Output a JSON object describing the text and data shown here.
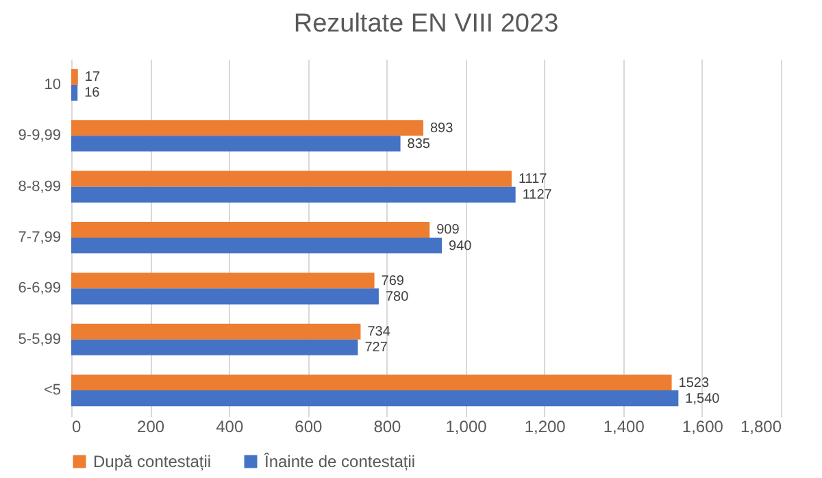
{
  "chart_data": {
    "type": "bar",
    "orientation": "horizontal",
    "title": "Rezultate EN VIII 2023",
    "categories": [
      "10",
      "9-9,99",
      "8-8,99",
      "7-7,99",
      "6-6,99",
      "5-5,99",
      "<5"
    ],
    "series": [
      {
        "name": "După contestații",
        "color": "#ed7d31",
        "values": [
          17,
          893,
          1117,
          909,
          769,
          734,
          1523
        ],
        "value_labels": [
          "17",
          "893",
          "1117",
          "909",
          "769",
          "734",
          "1523"
        ]
      },
      {
        "name": "Înainte de contestații",
        "color": "#4472c4",
        "values": [
          16,
          835,
          1127,
          940,
          780,
          727,
          1540
        ],
        "value_labels": [
          "16",
          "835",
          "1127",
          "940",
          "780",
          "727",
          "1,540"
        ]
      }
    ],
    "xlim": [
      0,
      1800
    ],
    "xticks": [
      0,
      200,
      400,
      600,
      800,
      {
        "value": 1000,
        "label": "1,000"
      },
      {
        "value": 1200,
        "label": "1,200"
      },
      {
        "value": 1400,
        "label": "1,400"
      },
      {
        "value": 1600,
        "label": "1,600"
      },
      {
        "value": 1800,
        "label": "1,800"
      }
    ],
    "grid": "x",
    "legend": "bottom"
  }
}
